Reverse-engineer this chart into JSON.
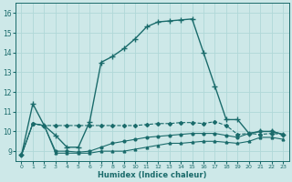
{
  "xlabel": "Humidex (Indice chaleur)",
  "ylabel": "",
  "xlim": [
    -0.5,
    23.5
  ],
  "ylim": [
    8.5,
    16.5
  ],
  "yticks": [
    9,
    10,
    11,
    12,
    13,
    14,
    15,
    16
  ],
  "xticks": [
    0,
    1,
    2,
    3,
    4,
    5,
    6,
    7,
    8,
    9,
    10,
    11,
    12,
    13,
    14,
    15,
    16,
    17,
    18,
    19,
    20,
    21,
    22,
    23
  ],
  "bg_color": "#cde8e8",
  "grid_color": "#b0d8d8",
  "line_color": "#1a6b6b",
  "lines": [
    {
      "x": [
        0,
        1,
        2,
        3,
        4,
        5,
        6,
        7,
        8,
        9,
        10,
        11,
        12,
        13,
        14,
        15,
        16,
        17,
        18,
        19,
        20,
        21,
        22,
        23
      ],
      "y": [
        8.8,
        11.4,
        10.3,
        9.8,
        9.2,
        9.2,
        10.5,
        13.5,
        13.8,
        14.2,
        14.7,
        15.3,
        15.55,
        15.6,
        15.65,
        15.7,
        14.0,
        12.3,
        10.6,
        10.6,
        9.9,
        10.0,
        10.0,
        9.85
      ],
      "marker": "+",
      "markersize": 4,
      "linestyle": "-",
      "linewidth": 1.0
    },
    {
      "x": [
        0,
        1,
        2,
        3,
        4,
        5,
        6,
        7,
        8,
        9,
        10,
        11,
        12,
        13,
        14,
        15,
        16,
        17,
        18,
        19,
        20,
        21,
        22,
        23
      ],
      "y": [
        8.8,
        10.4,
        10.3,
        10.3,
        10.3,
        10.3,
        10.3,
        10.3,
        10.3,
        10.3,
        10.3,
        10.35,
        10.4,
        10.4,
        10.45,
        10.45,
        10.4,
        10.5,
        10.3,
        9.85,
        9.9,
        9.85,
        9.9,
        9.85
      ],
      "marker": "D",
      "markersize": 2,
      "linestyle": "--",
      "linewidth": 0.8
    },
    {
      "x": [
        0,
        1,
        2,
        3,
        4,
        5,
        6,
        7,
        8,
        9,
        10,
        11,
        12,
        13,
        14,
        15,
        16,
        17,
        18,
        19,
        20,
        21,
        22,
        23
      ],
      "y": [
        8.8,
        10.4,
        10.3,
        9.0,
        9.0,
        8.95,
        9.0,
        9.2,
        9.4,
        9.5,
        9.6,
        9.7,
        9.75,
        9.8,
        9.85,
        9.9,
        9.9,
        9.9,
        9.8,
        9.7,
        9.9,
        10.0,
        10.0,
        9.85
      ],
      "marker": "o",
      "markersize": 2,
      "linestyle": "-",
      "linewidth": 0.8
    },
    {
      "x": [
        0,
        1,
        2,
        3,
        4,
        5,
        6,
        7,
        8,
        9,
        10,
        11,
        12,
        13,
        14,
        15,
        16,
        17,
        18,
        19,
        20,
        21,
        22,
        23
      ],
      "y": [
        8.8,
        10.4,
        10.3,
        8.9,
        8.9,
        8.9,
        8.9,
        9.0,
        9.0,
        9.0,
        9.1,
        9.2,
        9.3,
        9.4,
        9.4,
        9.45,
        9.5,
        9.5,
        9.45,
        9.4,
        9.5,
        9.7,
        9.7,
        9.6
      ],
      "marker": "^",
      "markersize": 2,
      "linestyle": "-",
      "linewidth": 0.8
    }
  ]
}
